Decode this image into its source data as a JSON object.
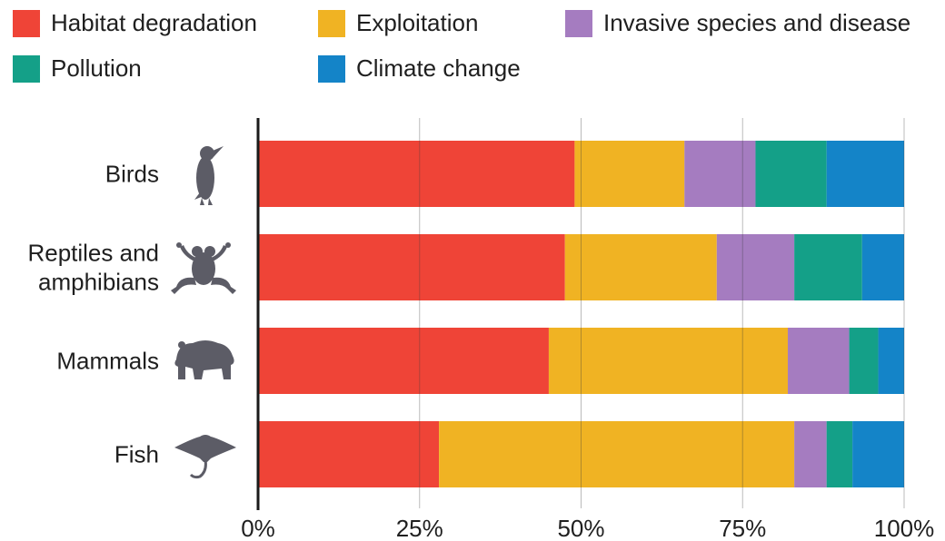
{
  "chart_data": {
    "type": "bar",
    "orientation": "horizontal",
    "stacked": true,
    "categories": [
      "Birds",
      "Reptiles and amphibians",
      "Mammals",
      "Fish"
    ],
    "category_label_lines": [
      [
        "Birds"
      ],
      [
        "Reptiles and",
        "amphibians"
      ],
      [
        "Mammals"
      ],
      [
        "Fish"
      ]
    ],
    "category_icons": [
      "bird-icon",
      "frog-icon",
      "bear-icon",
      "manta-ray-icon"
    ],
    "series": [
      {
        "name": "Habitat degradation",
        "color": "#ef4437",
        "values": [
          49,
          47.5,
          45,
          28
        ]
      },
      {
        "name": "Exploitation",
        "color": "#f0b323",
        "values": [
          17,
          23.5,
          37,
          55
        ]
      },
      {
        "name": "Invasive species and disease",
        "color": "#a57cc0",
        "values": [
          11,
          12,
          9.5,
          5
        ]
      },
      {
        "name": "Pollution",
        "color": "#14a088",
        "values": [
          11,
          10.5,
          4.5,
          4
        ]
      },
      {
        "name": "Climate change",
        "color": "#1484c8",
        "values": [
          12,
          6.5,
          4,
          8
        ]
      }
    ],
    "xlim": [
      0,
      100
    ],
    "x_ticks": [
      0,
      25,
      50,
      75,
      100
    ],
    "x_tick_labels": [
      "0%",
      "25%",
      "50%",
      "75%",
      "100%"
    ],
    "grid": true,
    "legend_position": "top",
    "title": "",
    "xlabel": "",
    "ylabel": ""
  }
}
